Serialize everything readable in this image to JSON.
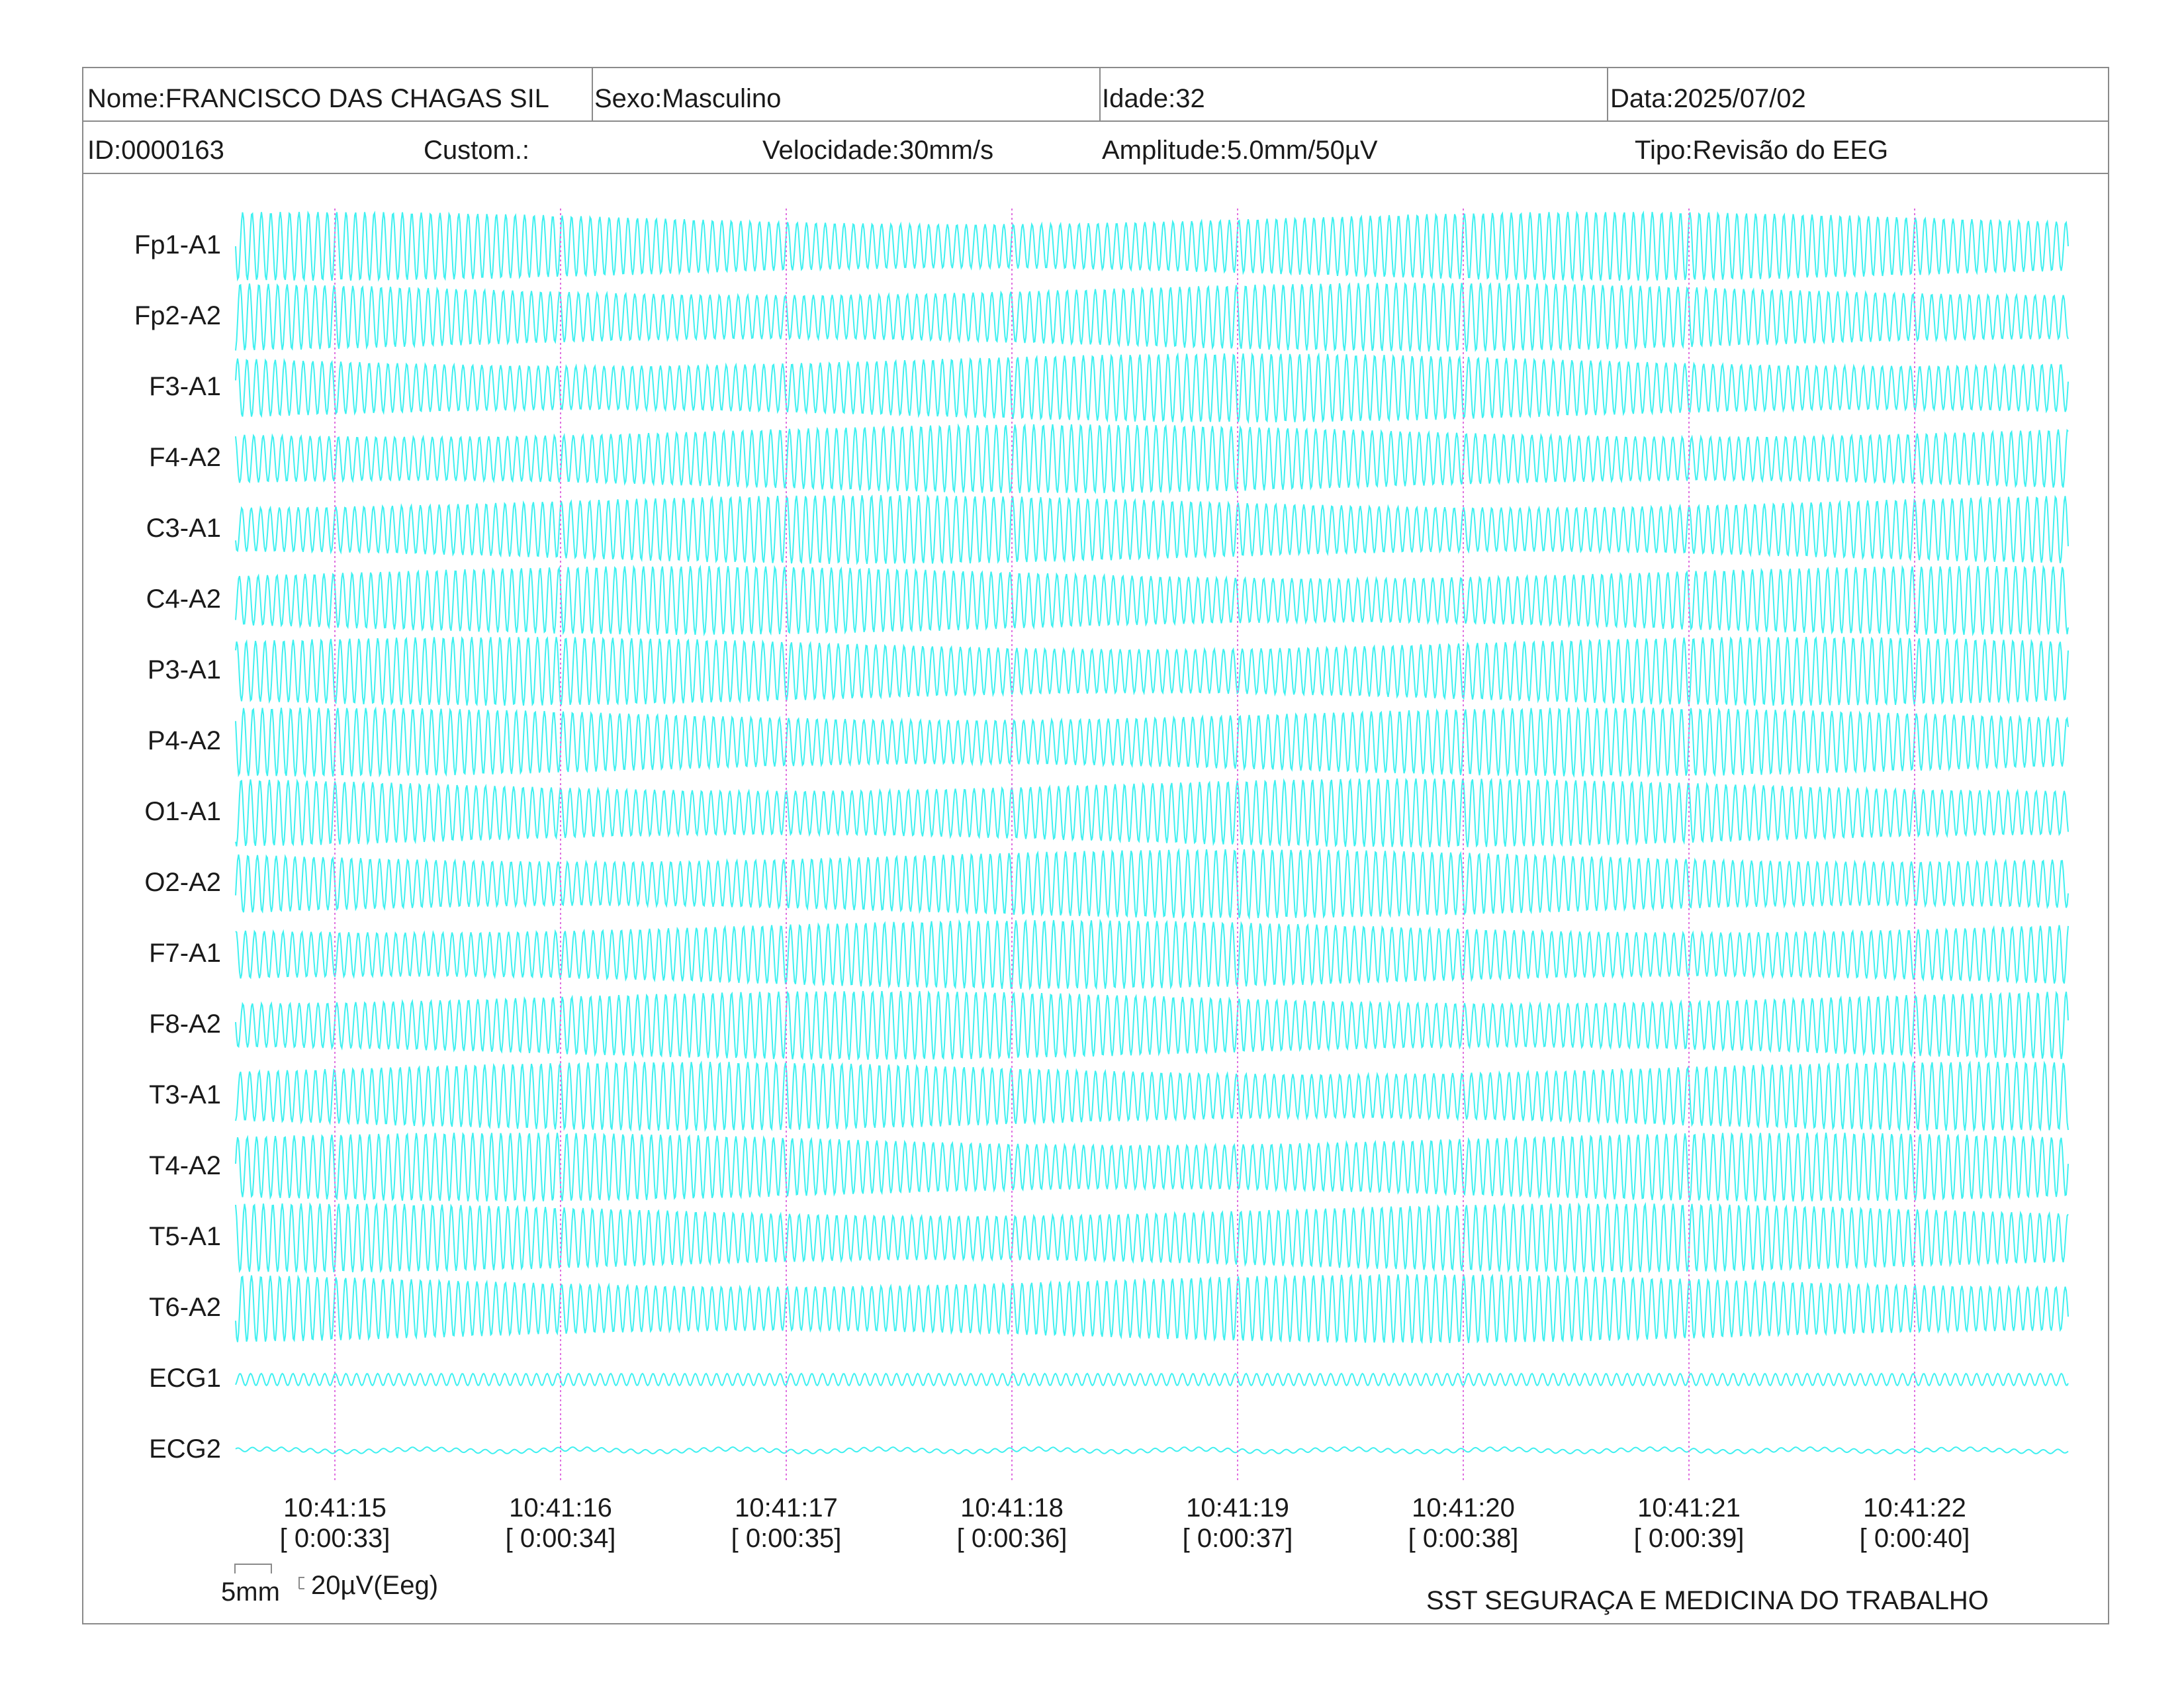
{
  "header": {
    "name": "Nome:FRANCISCO DAS CHAGAS SIL",
    "sex": "Sexo:Masculino",
    "age": "Idade:32",
    "date": "Data:2025/07/02",
    "id": "ID:0000163",
    "custom": "Custom.:",
    "speed": "Velocidade:30mm/s",
    "amplitude": "Amplitude:5.0mm/50µV",
    "type": "Tipo:Revisão do EEG"
  },
  "channels": [
    "Fp1-A1",
    "Fp2-A2",
    "F3-A1",
    "F4-A2",
    "C3-A1",
    "C4-A2",
    "P3-A1",
    "P4-A2",
    "O1-A1",
    "O2-A2",
    "F7-A1",
    "F8-A2",
    "T3-A1",
    "T4-A2",
    "T5-A1",
    "T6-A2",
    "ECG1",
    "ECG2"
  ],
  "time_marks": [
    {
      "clock": "10:41:15",
      "elapsed": "[ 0:00:33]"
    },
    {
      "clock": "10:41:16",
      "elapsed": "[ 0:00:34]"
    },
    {
      "clock": "10:41:17",
      "elapsed": "[ 0:00:35]"
    },
    {
      "clock": "10:41:18",
      "elapsed": "[ 0:00:36]"
    },
    {
      "clock": "10:41:19",
      "elapsed": "[ 0:00:37]"
    },
    {
      "clock": "10:41:20",
      "elapsed": "[ 0:00:38]"
    },
    {
      "clock": "10:41:21",
      "elapsed": "[ 0:00:39]"
    },
    {
      "clock": "10:41:22",
      "elapsed": "[ 0:00:40]"
    }
  ],
  "scale": {
    "time": "5mm",
    "amplitude": "20µV(Eeg)"
  },
  "footer": {
    "company": "SST SEGURAÇA E MEDICINA DO TRABALHO"
  },
  "colors": {
    "trace": "#3ff0f0",
    "marker": "#e070e0",
    "border": "#8a8a8a"
  }
}
